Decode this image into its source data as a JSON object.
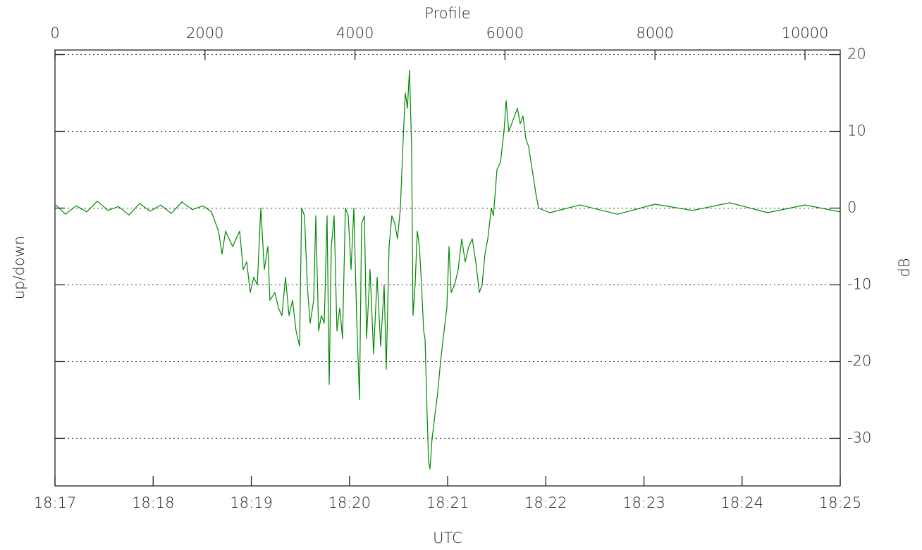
{
  "chart_data": {
    "type": "line",
    "title": "Profile",
    "xlabel": "UTC",
    "ylabel": "up/down",
    "y2label": "dB",
    "color": "#008800",
    "grid": true,
    "xlim": [
      0,
      10470
    ],
    "xticks": [
      0,
      2000,
      4000,
      6000,
      8000,
      10000
    ],
    "x2lim": [
      0,
      10470
    ],
    "x2ticks": [
      {
        "value": 0,
        "label": "18:17"
      },
      {
        "value": 1309,
        "label": "18:18"
      },
      {
        "value": 2618,
        "label": "18:19"
      },
      {
        "value": 3926,
        "label": "18:20"
      },
      {
        "value": 5235,
        "label": "18:21"
      },
      {
        "value": 6544,
        "label": "18:22"
      },
      {
        "value": 7853,
        "label": "18:23"
      },
      {
        "value": 9161,
        "label": "18:24"
      },
      {
        "value": 10470,
        "label": "18:25"
      }
    ],
    "ylim": [
      -36.2,
      20.6
    ],
    "yticks": [
      -30,
      -20,
      -10,
      0,
      10,
      20
    ],
    "x": [
      0,
      141,
      282,
      423,
      564,
      705,
      846,
      987,
      1128,
      1269,
      1410,
      1551,
      1692,
      1833,
      1974,
      2086,
      2180,
      2227,
      2274,
      2368,
      2462,
      2509,
      2556,
      2603,
      2650,
      2697,
      2744,
      2791,
      2838,
      2866,
      2932,
      2979,
      3026,
      3073,
      3120,
      3167,
      3214,
      3261,
      3289,
      3327,
      3364,
      3402,
      3449,
      3477,
      3515,
      3552,
      3590,
      3628,
      3656,
      3684,
      3722,
      3759,
      3797,
      3834,
      3872,
      3910,
      3947,
      3985,
      4022,
      4060,
      4088,
      4126,
      4154,
      4201,
      4248,
      4295,
      4342,
      4389,
      4417,
      4455,
      4492,
      4530,
      4567,
      4605,
      4643,
      4671,
      4699,
      4727,
      4755,
      4774,
      4802,
      4831,
      4859,
      4887,
      4915,
      4934,
      4962,
      4981,
      5000,
      5028,
      5066,
      5103,
      5141,
      5188,
      5225,
      5254,
      5282,
      5329,
      5376,
      5423,
      5470,
      5517,
      5564,
      5611,
      5658,
      5695,
      5733,
      5771,
      5818,
      5846,
      5893,
      5940,
      5987,
      6015,
      6052,
      6090,
      6128,
      6165,
      6203,
      6240,
      6278,
      6316,
      6363,
      6410,
      6447,
      6597,
      7000,
      7500,
      8000,
      8500,
      9000,
      9500,
      10000,
      10470
    ],
    "values": [
      0.5,
      -0.8,
      0.3,
      -0.5,
      0.9,
      -0.3,
      0.2,
      -0.9,
      0.6,
      -0.4,
      0.4,
      -0.7,
      0.8,
      -0.2,
      0.3,
      -0.5,
      -3,
      -6,
      -3,
      -5,
      -3,
      -8,
      -7,
      -11,
      -9,
      -10,
      0,
      -8,
      -5,
      -12,
      -11,
      -13,
      -14,
      -9,
      -14,
      -12,
      -16,
      -18,
      0,
      -1,
      -10,
      -15,
      -12,
      -1,
      -16,
      -14,
      -15,
      -1,
      -23,
      -5,
      -1,
      -16,
      -13,
      -17,
      0,
      -1,
      -8,
      0,
      -14,
      -25,
      -2,
      -1,
      -17,
      -8,
      -19,
      -9,
      -18,
      -10,
      -21,
      -5,
      -1,
      -2,
      -4,
      0,
      9,
      15,
      13,
      18,
      8,
      -14,
      -10,
      -3,
      -5,
      -10,
      -16,
      -17,
      -27,
      -33,
      -34,
      -30,
      -27,
      -24,
      -20,
      -16,
      -13,
      -5,
      -11,
      -10,
      -8,
      -4,
      -7,
      -5,
      -4,
      -7,
      -11,
      -10,
      -6,
      -4,
      0,
      -1,
      5,
      6,
      10,
      14,
      10,
      11,
      12,
      13,
      11,
      12,
      9,
      8,
      5,
      2,
      0,
      -0.6,
      0.4,
      -0.8,
      0.5,
      -0.3,
      0.7,
      -0.6,
      0.4,
      -0.5
    ]
  }
}
